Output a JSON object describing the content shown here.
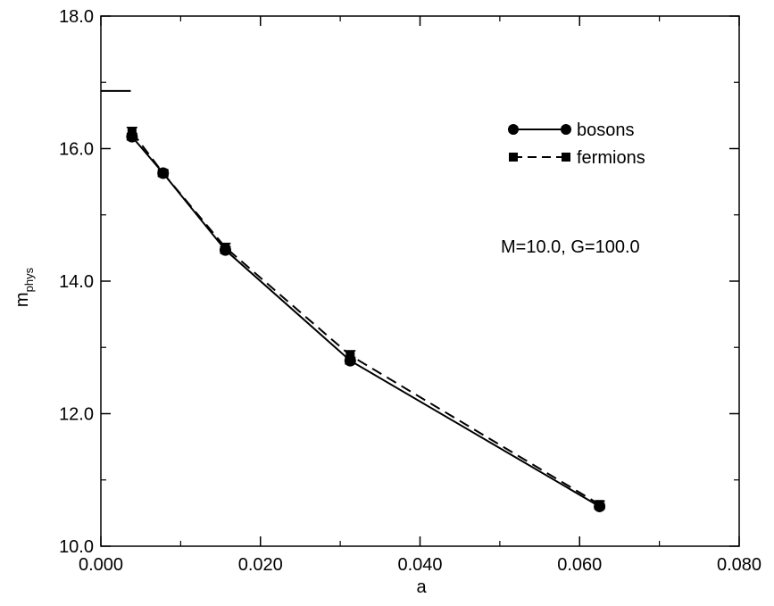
{
  "chart_data": {
    "type": "line",
    "xlabel": "a",
    "ylabel_main": "m",
    "ylabel_sub": "phys",
    "xlim": [
      0.0,
      0.08
    ],
    "ylim": [
      10.0,
      18.0
    ],
    "xticks": [
      0.0,
      0.02,
      0.04,
      0.06,
      0.08
    ],
    "xtick_labels": [
      "0.000",
      "0.020",
      "0.040",
      "0.060",
      "0.080"
    ],
    "yticks": [
      10.0,
      12.0,
      14.0,
      16.0,
      18.0
    ],
    "ytick_labels": [
      "10.0",
      "12.0",
      "14.0",
      "16.0",
      "18.0"
    ],
    "grid": false,
    "legend_position": "top-right",
    "annotation": "M=10.0, G=100.0",
    "reference_line": {
      "y": 16.87,
      "x_from": 0.0,
      "x_to": 0.00375
    },
    "series": [
      {
        "name": "bosons",
        "line_style": "solid",
        "marker": "circle",
        "x": [
          0.0039,
          0.0078,
          0.0156,
          0.03125,
          0.0625
        ],
        "y": [
          16.18,
          15.63,
          14.47,
          12.8,
          10.6
        ],
        "yerr": [
          0.05,
          0.04,
          0.05,
          0.05,
          0.04
        ]
      },
      {
        "name": "fermions",
        "line_style": "dashed",
        "marker": "square",
        "x": [
          0.0039,
          0.0078,
          0.0156,
          0.03125,
          0.0625
        ],
        "y": [
          16.25,
          15.63,
          14.51,
          12.88,
          10.63
        ],
        "yerr": [
          0.07,
          0.05,
          0.06,
          0.07,
          0.05
        ]
      }
    ]
  }
}
